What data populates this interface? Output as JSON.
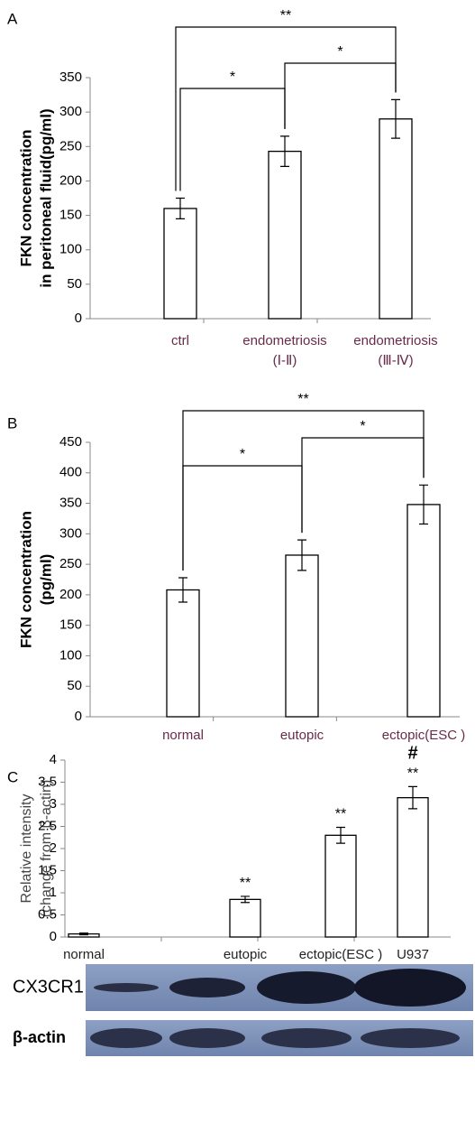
{
  "chart_data": [
    {
      "type": "bar",
      "panel": "A",
      "ylabel": [
        "FKN concentration",
        "in peritoneal  fluid(pg/ml)"
      ],
      "categories": [
        "ctrl",
        "endometriosis\n(Ⅰ-Ⅱ)",
        "endometriosis\n(Ⅲ-Ⅳ)"
      ],
      "values": [
        160,
        243,
        290
      ],
      "errors": [
        15,
        22,
        28
      ],
      "color": "#ffffff",
      "ylim": [
        0,
        350
      ],
      "yticks": [
        0,
        50,
        100,
        150,
        200,
        250,
        300,
        350
      ],
      "annotations": [
        "*",
        "*",
        "**"
      ]
    },
    {
      "type": "bar",
      "panel": "B",
      "ylabel": [
        "FKN concentration",
        "(pg/ml)"
      ],
      "categories": [
        "normal",
        "eutopic",
        "ectopic(ESC )"
      ],
      "values": [
        208,
        265,
        348
      ],
      "errors": [
        20,
        25,
        32
      ],
      "color": "#ffffff",
      "ylim": [
        0,
        450
      ],
      "yticks": [
        0,
        50,
        100,
        150,
        200,
        250,
        300,
        350,
        400,
        450
      ],
      "annotations": [
        "*",
        "*",
        "**"
      ]
    },
    {
      "type": "bar",
      "panel": "C",
      "ylabel": [
        "Relative intensity",
        "(change from β-actin)"
      ],
      "categories": [
        "normal",
        "eutopic",
        "ectopic(ESC )",
        "U937"
      ],
      "values": [
        0.07,
        0.85,
        2.3,
        3.15
      ],
      "errors": [
        0.02,
        0.07,
        0.18,
        0.25
      ],
      "color": "#ffffff",
      "ylim": [
        0,
        4
      ],
      "yticks": [
        0,
        0.5,
        1,
        1.5,
        2,
        2.5,
        3,
        3.5,
        4
      ],
      "significance": [
        null,
        "**",
        "**",
        "**"
      ],
      "significance_top": [
        null,
        null,
        null,
        "#"
      ]
    }
  ],
  "blot": {
    "rows": [
      "CX3CR1",
      "β-actin"
    ]
  }
}
